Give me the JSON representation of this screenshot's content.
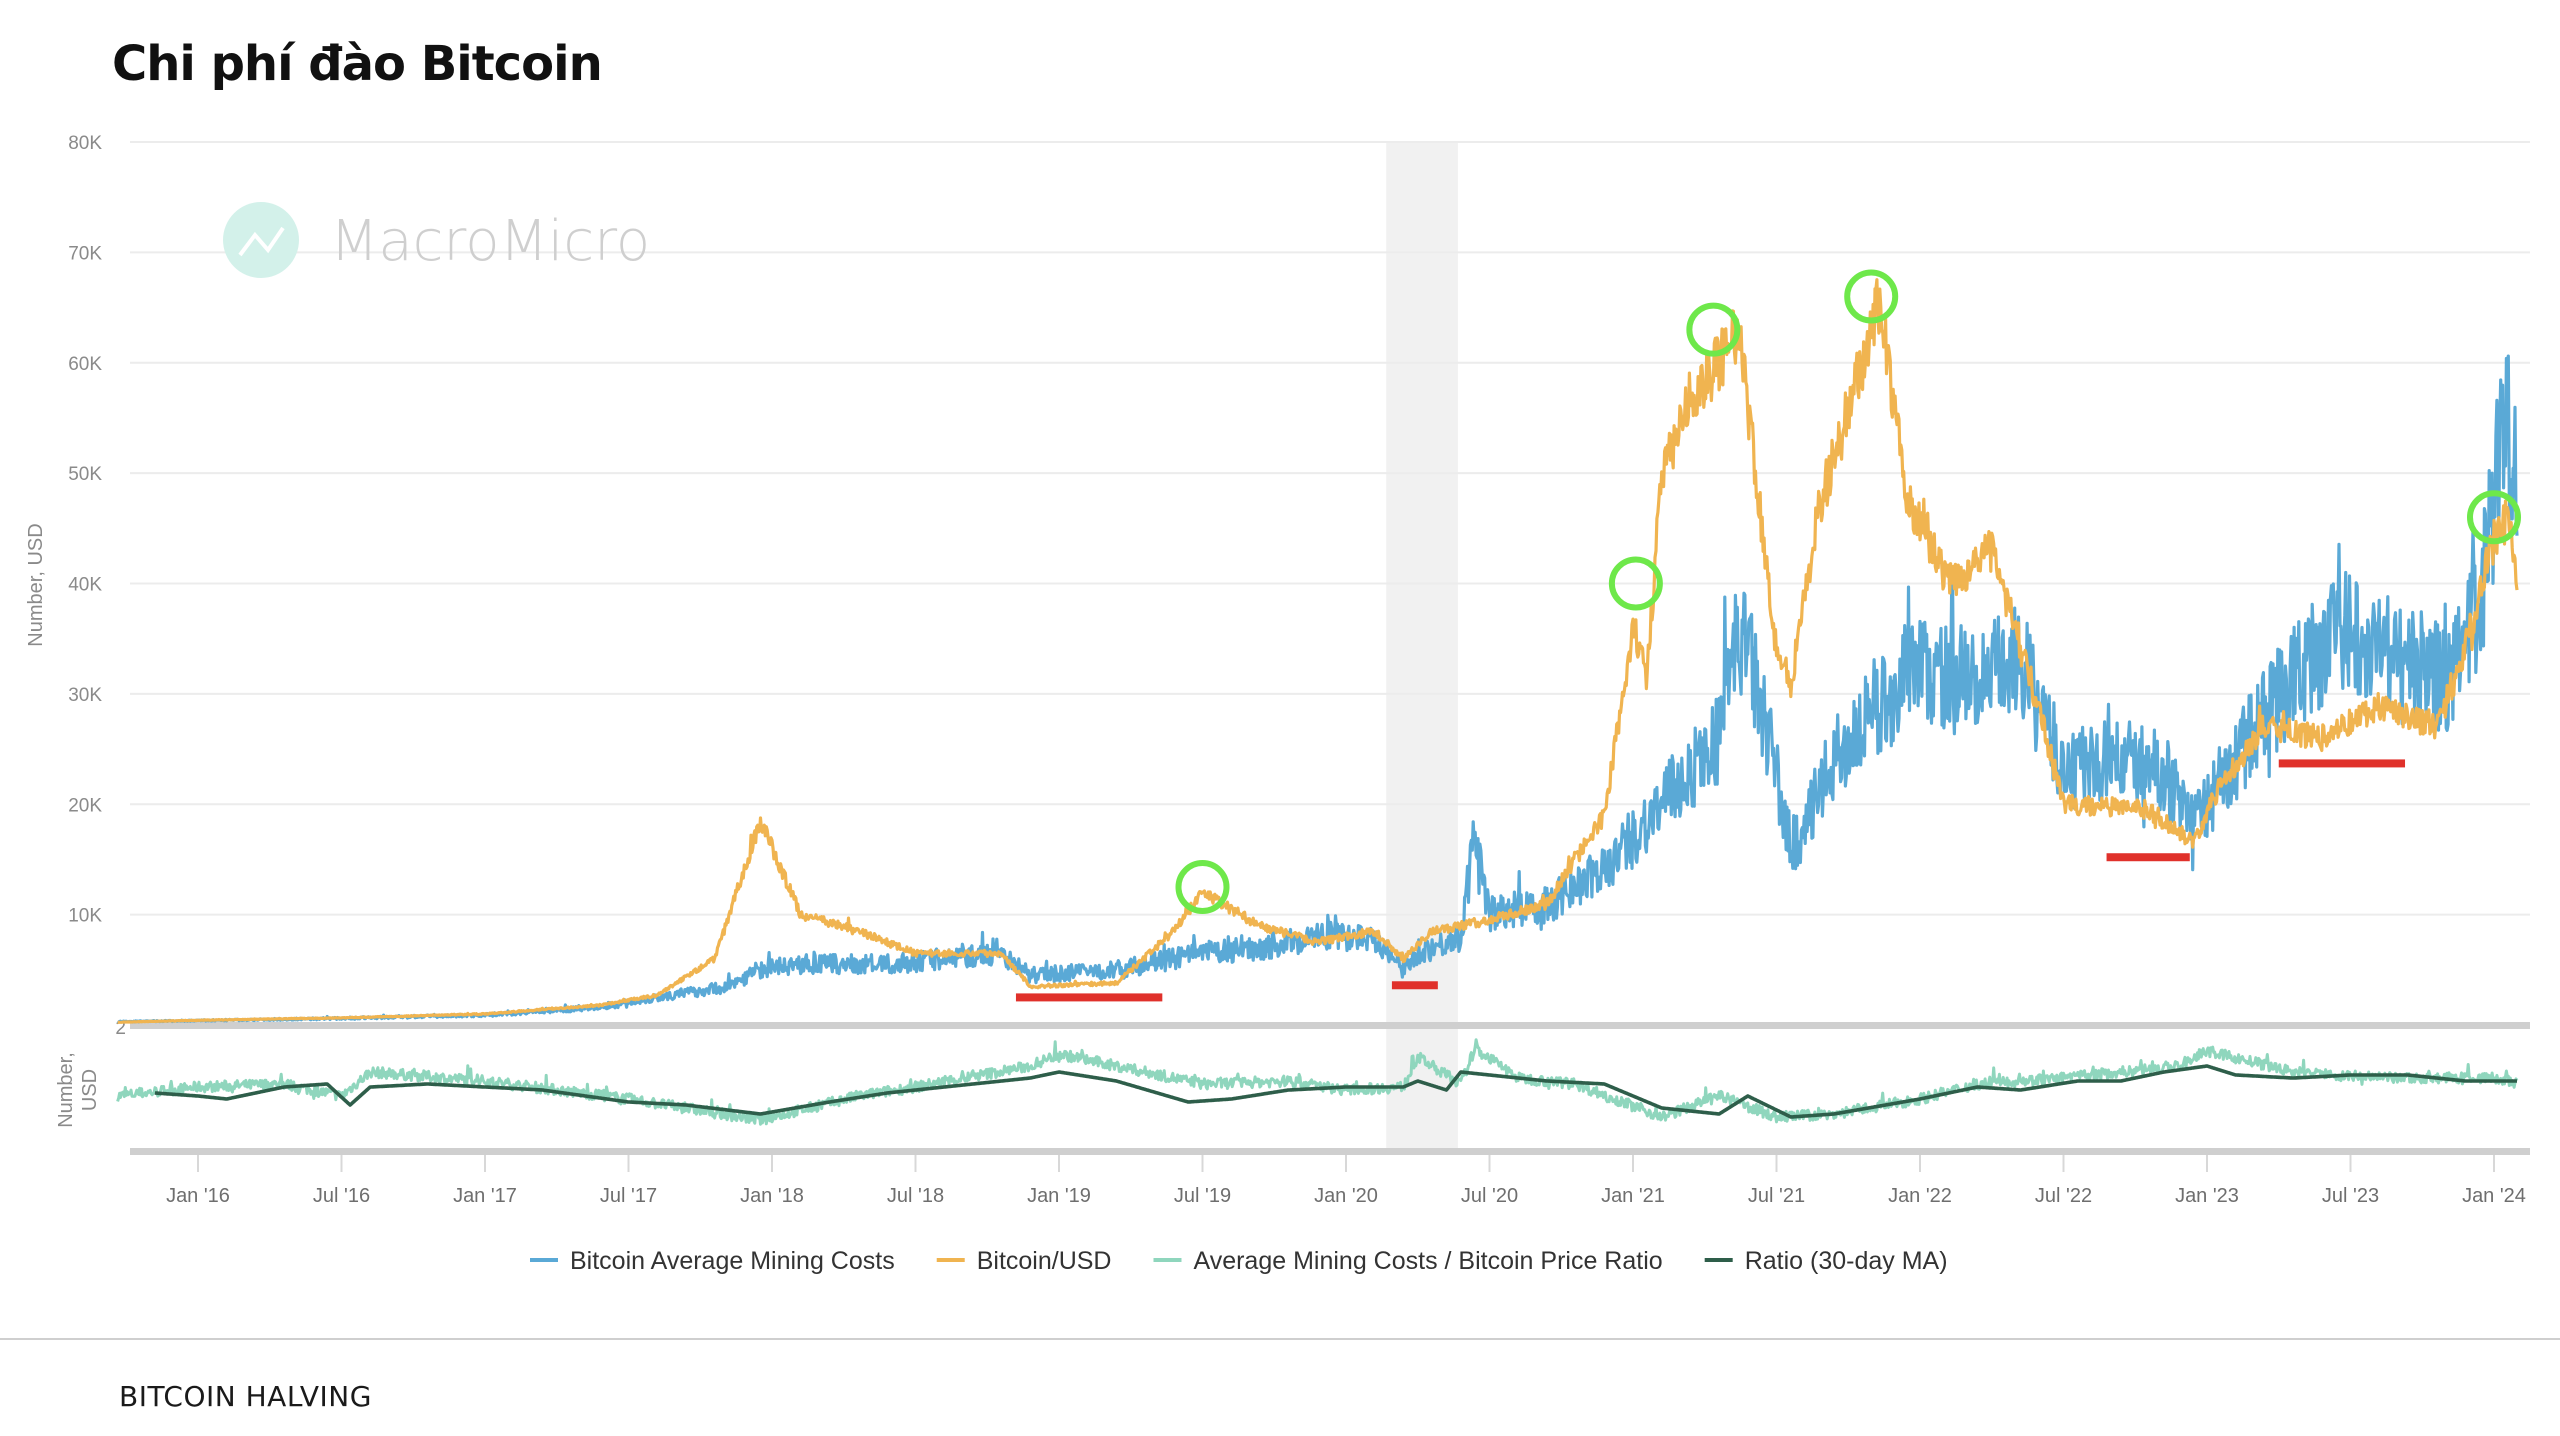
{
  "page": {
    "title": "Chi phí đào Bitcoin",
    "footer": "BITCOIN HALVING"
  },
  "watermark": {
    "text": "MacroMicro",
    "icon": "chart-line-icon"
  },
  "chart_data": {
    "type": "line",
    "title": "Chi phí đào Bitcoin",
    "panels": [
      {
        "name": "price",
        "ylabel": "Number, USD",
        "ylim": [
          0,
          80000
        ],
        "yticks": [
          {
            "value": 10000,
            "label": "10K"
          },
          {
            "value": 20000,
            "label": "20K"
          },
          {
            "value": 30000,
            "label": "30K"
          },
          {
            "value": 40000,
            "label": "40K"
          },
          {
            "value": 50000,
            "label": "50K"
          },
          {
            "value": 60000,
            "label": "60K"
          },
          {
            "value": 70000,
            "label": "70K"
          },
          {
            "value": 80000,
            "label": "80K"
          }
        ],
        "grid": true
      },
      {
        "name": "ratio",
        "ylabel": "Number, USD",
        "top_label": "2",
        "ylim": [
          0,
          2
        ]
      }
    ],
    "xlim": [
      2015.7,
      2024.15
    ],
    "xticks": [
      {
        "value": 2016.0,
        "label": "Jan '16"
      },
      {
        "value": 2016.5,
        "label": "Jul '16"
      },
      {
        "value": 2017.0,
        "label": "Jan '17"
      },
      {
        "value": 2017.5,
        "label": "Jul '17"
      },
      {
        "value": 2018.0,
        "label": "Jan '18"
      },
      {
        "value": 2018.5,
        "label": "Jul '18"
      },
      {
        "value": 2019.0,
        "label": "Jan '19"
      },
      {
        "value": 2019.5,
        "label": "Jul '19"
      },
      {
        "value": 2020.0,
        "label": "Jan '20"
      },
      {
        "value": 2020.5,
        "label": "Jul '20"
      },
      {
        "value": 2021.0,
        "label": "Jan '21"
      },
      {
        "value": 2021.5,
        "label": "Jul '21"
      },
      {
        "value": 2022.0,
        "label": "Jan '22"
      },
      {
        "value": 2022.5,
        "label": "Jul '22"
      },
      {
        "value": 2023.0,
        "label": "Jan '23"
      },
      {
        "value": 2023.5,
        "label": "Jul '23"
      },
      {
        "value": 2024.0,
        "label": "Jan '24"
      }
    ],
    "shaded_region": {
      "label": "halving",
      "x": [
        2020.14,
        2020.39
      ]
    },
    "series": [
      {
        "name": "Bitcoin Average Mining Costs",
        "panel": "price",
        "color": "#5aa9d6",
        "x": [
          2015.72,
          2016.0,
          2016.5,
          2017.0,
          2017.4,
          2017.6,
          2017.85,
          2017.95,
          2018.1,
          2018.4,
          2018.6,
          2018.8,
          2018.9,
          2019.2,
          2019.5,
          2019.7,
          2019.9,
          2020.1,
          2020.2,
          2020.25,
          2020.4,
          2020.45,
          2020.5,
          2020.7,
          2020.9,
          2021.0,
          2021.2,
          2021.3,
          2021.37,
          2021.45,
          2021.55,
          2021.6,
          2021.7,
          2021.9,
          2022.0,
          2022.2,
          2022.35,
          2022.5,
          2022.7,
          2022.85,
          2022.95,
          2023.05,
          2023.2,
          2023.35,
          2023.5,
          2023.7,
          2023.85,
          2023.95,
          2024.0,
          2024.05,
          2024.08
        ],
        "y": [
          300,
          400,
          600,
          900,
          1600,
          2500,
          3500,
          5000,
          5500,
          5500,
          6000,
          6500,
          4500,
          5000,
          6500,
          7000,
          8000,
          8000,
          5000,
          6500,
          8000,
          17500,
          10000,
          11000,
          14000,
          17000,
          23000,
          26000,
          36000,
          29000,
          16000,
          18000,
          24000,
          30000,
          32000,
          31000,
          33000,
          23000,
          24000,
          23000,
          18000,
          22000,
          28000,
          33000,
          36000,
          33000,
          31000,
          38000,
          48000,
          55000,
          52000
        ]
      },
      {
        "name": "Bitcoin/USD",
        "panel": "price",
        "color": "#f0b450",
        "x": [
          2015.72,
          2016.0,
          2016.5,
          2017.0,
          2017.4,
          2017.6,
          2017.8,
          2017.96,
          2018.1,
          2018.3,
          2018.5,
          2018.8,
          2018.9,
          2019.2,
          2019.4,
          2019.5,
          2019.7,
          2019.9,
          2020.1,
          2020.2,
          2020.3,
          2020.5,
          2020.7,
          2020.9,
          2021.0,
          2021.05,
          2021.1,
          2021.2,
          2021.3,
          2021.37,
          2021.5,
          2021.55,
          2021.65,
          2021.8,
          2021.86,
          2021.95,
          2022.1,
          2022.25,
          2022.4,
          2022.5,
          2022.8,
          2022.95,
          2023.05,
          2023.2,
          2023.4,
          2023.6,
          2023.8,
          2023.9,
          2024.0,
          2024.05,
          2024.08
        ],
        "y": [
          250,
          430,
          650,
          1000,
          1800,
          2700,
          6000,
          18500,
          10000,
          8500,
          6500,
          6500,
          3500,
          3800,
          8500,
          12000,
          9000,
          7500,
          8500,
          6000,
          8500,
          9500,
          11000,
          19000,
          36000,
          32000,
          50000,
          57000,
          60000,
          63000,
          34000,
          31000,
          47000,
          60000,
          66000,
          48000,
          40000,
          43000,
          30000,
          20000,
          19500,
          16500,
          22000,
          27000,
          26000,
          29000,
          27000,
          34000,
          44000,
          46000,
          40000
        ]
      },
      {
        "name": "Average Mining Costs / Bitcoin Price Ratio",
        "panel": "ratio",
        "color": "#8fd6bd",
        "x": [
          2015.72,
          2016.0,
          2016.3,
          2016.5,
          2016.6,
          2017.0,
          2017.5,
          2017.96,
          2018.3,
          2018.5,
          2018.9,
          2019.0,
          2019.5,
          2019.8,
          2020.0,
          2020.2,
          2020.25,
          2020.4,
          2020.45,
          2020.6,
          2020.8,
          2021.1,
          2021.3,
          2021.5,
          2021.7,
          2022.0,
          2022.2,
          2022.5,
          2022.9,
          2023.0,
          2023.3,
          2023.6,
          2024.0,
          2024.08
        ],
        "y": [
          0.9,
          1.05,
          1.1,
          0.9,
          1.3,
          1.15,
          0.85,
          0.5,
          0.9,
          1.05,
          1.4,
          1.6,
          1.1,
          1.15,
          1.0,
          1.05,
          1.55,
          1.1,
          1.7,
          1.2,
          1.1,
          0.55,
          0.9,
          0.55,
          0.6,
          0.85,
          1.1,
          1.2,
          1.4,
          1.65,
          1.3,
          1.2,
          1.2,
          1.1
        ]
      },
      {
        "name": "Ratio (30-day MA)",
        "panel": "ratio",
        "color": "#2e5e4a",
        "x": [
          2015.85,
          2016.0,
          2016.1,
          2016.3,
          2016.45,
          2016.53,
          2016.6,
          2016.8,
          2017.0,
          2017.2,
          2017.5,
          2017.7,
          2017.96,
          2018.2,
          2018.4,
          2018.6,
          2018.9,
          2019.0,
          2019.2,
          2019.45,
          2019.6,
          2019.8,
          2020.0,
          2020.2,
          2020.25,
          2020.35,
          2020.4,
          2020.5,
          2020.7,
          2020.9,
          2021.1,
          2021.3,
          2021.4,
          2021.55,
          2021.7,
          2022.0,
          2022.2,
          2022.35,
          2022.55,
          2022.7,
          2022.85,
          2023.0,
          2023.1,
          2023.3,
          2023.5,
          2023.7,
          2023.9,
          2024.08
        ],
        "y": [
          0.95,
          0.9,
          0.85,
          1.05,
          1.1,
          0.75,
          1.05,
          1.1,
          1.05,
          1.0,
          0.8,
          0.75,
          0.6,
          0.8,
          0.95,
          1.05,
          1.2,
          1.3,
          1.15,
          0.8,
          0.85,
          1.0,
          1.05,
          1.05,
          1.15,
          1.0,
          1.3,
          1.25,
          1.15,
          1.1,
          0.7,
          0.6,
          0.9,
          0.55,
          0.6,
          0.85,
          1.05,
          1.0,
          1.15,
          1.15,
          1.3,
          1.4,
          1.25,
          1.2,
          1.25,
          1.25,
          1.15,
          1.15
        ]
      }
    ],
    "annotations": {
      "green_circles": [
        {
          "x": 2019.5,
          "y": 12500,
          "label": "peak"
        },
        {
          "x": 2021.01,
          "y": 40000,
          "label": "peak"
        },
        {
          "x": 2021.28,
          "y": 63000,
          "label": "peak"
        },
        {
          "x": 2021.83,
          "y": 66000,
          "label": "peak"
        },
        {
          "x": 2024.0,
          "y": 46000,
          "label": "peak"
        }
      ],
      "red_bars": [
        {
          "x": [
            2018.85,
            2019.36
          ],
          "y": 2500,
          "label": "bottom"
        },
        {
          "x": [
            2020.16,
            2020.32
          ],
          "y": 3600,
          "label": "bottom"
        },
        {
          "x": [
            2022.65,
            2022.94
          ],
          "y": 15200,
          "label": "bottom"
        },
        {
          "x": [
            2023.25,
            2023.69
          ],
          "y": 23700,
          "label": "bottom"
        }
      ]
    },
    "legend": {
      "position": "bottom-center",
      "entries": [
        {
          "label": "Bitcoin Average Mining Costs",
          "color": "#5aa9d6"
        },
        {
          "label": "Bitcoin/USD",
          "color": "#f0b450"
        },
        {
          "label": "Average Mining Costs / Bitcoin Price Ratio",
          "color": "#8fd6bd"
        },
        {
          "label": "Ratio (30-day MA)",
          "color": "#2e5e4a"
        }
      ]
    }
  }
}
